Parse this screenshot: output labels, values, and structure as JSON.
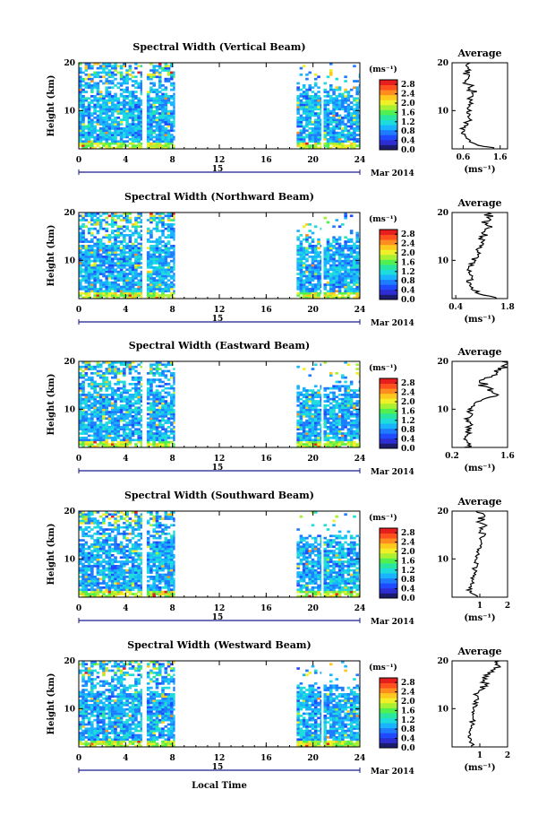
{
  "date_label": "Mar 2014",
  "day_label": "15",
  "xlabel": "Local Time",
  "colorbar": {
    "unit": "(ms⁻¹)",
    "ticks": [
      "0.0",
      "0.4",
      "0.8",
      "1.2",
      "1.6",
      "2.0",
      "2.4",
      "2.8"
    ],
    "min": 0.0,
    "max": 3.0,
    "colors": [
      "#1c1c6e",
      "#2d2dd2",
      "#1e4bff",
      "#1e7dff",
      "#18b4ff",
      "#1edcdc",
      "#28e6a0",
      "#50f050",
      "#aaf032",
      "#f0f028",
      "#ffc81e",
      "#ff8c1e",
      "#ff501e",
      "#e61e1e"
    ]
  },
  "chart_data": [
    {
      "type": "heatmap",
      "title": "Spectral Width (Vertical Beam)",
      "xlabel": "Local Time",
      "ylabel": "Height (km)",
      "xlim": [
        0,
        24
      ],
      "ylim": [
        2,
        20
      ],
      "xticks": [
        0,
        4,
        8,
        12,
        16,
        20,
        24
      ],
      "yticks": [
        10,
        20
      ],
      "data_segments": [
        [
          0,
          5.4
        ],
        [
          5.8,
          8.2
        ],
        [
          18.6,
          20.7
        ],
        [
          20.9,
          24
        ]
      ],
      "zunit": "ms⁻¹",
      "zlim": [
        0,
        3.0
      ],
      "average_profile": {
        "title": "Average",
        "xlabel": "(ms⁻¹)",
        "xlim": [
          0.3,
          1.8
        ],
        "xticks": [
          0.6,
          1.6
        ],
        "height": [
          2,
          3,
          4,
          5,
          6,
          7,
          8,
          9,
          10,
          11,
          12,
          13,
          14,
          15,
          16,
          17,
          18,
          19,
          20
        ],
        "value": [
          1.5,
          0.9,
          0.7,
          0.6,
          0.6,
          0.65,
          0.75,
          0.7,
          0.75,
          0.8,
          0.75,
          0.85,
          0.9,
          0.75,
          0.7,
          0.8,
          0.65,
          0.7,
          0.65
        ]
      }
    },
    {
      "type": "heatmap",
      "title": "Spectral Width (Northward Beam)",
      "xlabel": "Local Time",
      "ylabel": "Height (km)",
      "xlim": [
        0,
        24
      ],
      "ylim": [
        2,
        20
      ],
      "xticks": [
        0,
        4,
        8,
        12,
        16,
        20,
        24
      ],
      "yticks": [
        10,
        20
      ],
      "data_segments": [
        [
          0,
          5.4
        ],
        [
          5.8,
          8.2
        ],
        [
          18.6,
          20.7
        ],
        [
          20.9,
          24
        ]
      ],
      "zunit": "ms⁻¹",
      "zlim": [
        0,
        3.0
      ],
      "average_profile": {
        "title": "Average",
        "xlabel": "(ms⁻¹)",
        "xlim": [
          0.3,
          1.8
        ],
        "xticks": [
          0.4,
          1.8
        ],
        "height": [
          2,
          3,
          4,
          5,
          6,
          7,
          8,
          9,
          10,
          11,
          12,
          13,
          14,
          15,
          16,
          17,
          18,
          19,
          20
        ],
        "value": [
          1.6,
          1.1,
          0.8,
          0.75,
          0.8,
          0.85,
          0.8,
          0.85,
          0.9,
          0.95,
          1.0,
          1.1,
          1.2,
          1.1,
          1.2,
          1.3,
          1.1,
          1.3,
          1.2
        ]
      }
    },
    {
      "type": "heatmap",
      "title": "Spectral Width (Eastward Beam)",
      "xlabel": "Local Time",
      "ylabel": "Height (km)",
      "xlim": [
        0,
        24
      ],
      "ylim": [
        2,
        20
      ],
      "xticks": [
        0,
        4,
        8,
        12,
        16,
        20,
        24
      ],
      "yticks": [
        10,
        20
      ],
      "data_segments": [
        [
          0,
          5.4
        ],
        [
          5.8,
          8.2
        ],
        [
          18.6,
          20.7
        ],
        [
          20.9,
          24
        ]
      ],
      "zunit": "ms⁻¹",
      "zlim": [
        0,
        3.0
      ],
      "average_profile": {
        "title": "Average",
        "xlabel": "(ms⁻¹)",
        "xlim": [
          0.2,
          1.6
        ],
        "xticks": [
          0.2,
          1.6
        ],
        "height": [
          2,
          3,
          4,
          5,
          6,
          7,
          8,
          9,
          10,
          11,
          12,
          13,
          14,
          15,
          16,
          17,
          18,
          19,
          20
        ],
        "value": [
          0.6,
          0.6,
          0.55,
          0.6,
          0.6,
          0.7,
          0.6,
          0.75,
          0.6,
          0.8,
          1.0,
          1.3,
          1.1,
          1.0,
          0.9,
          1.3,
          1.4,
          1.6,
          1.5
        ]
      }
    },
    {
      "type": "heatmap",
      "title": "Spectral Width (Southward Beam)",
      "xlabel": "Local Time",
      "ylabel": "Height (km)",
      "xlim": [
        0,
        24
      ],
      "ylim": [
        2,
        20
      ],
      "xticks": [
        0,
        4,
        8,
        12,
        16,
        20,
        24
      ],
      "yticks": [
        10,
        20
      ],
      "data_segments": [
        [
          0,
          5.4
        ],
        [
          5.8,
          8.2
        ],
        [
          18.6,
          20.7
        ],
        [
          20.9,
          24
        ]
      ],
      "zunit": "ms⁻¹",
      "zlim": [
        0,
        3.0
      ],
      "average_profile": {
        "title": "Average",
        "xlabel": "(ms⁻¹)",
        "xlim": [
          0,
          2
        ],
        "xticks": [
          1,
          2
        ],
        "height": [
          2,
          3,
          4,
          5,
          6,
          7,
          8,
          9,
          10,
          11,
          12,
          13,
          14,
          15,
          16,
          17,
          18,
          19,
          20
        ],
        "value": [
          1.0,
          0.6,
          0.65,
          0.7,
          0.75,
          0.8,
          0.8,
          0.85,
          0.9,
          0.95,
          1.0,
          1.05,
          1.0,
          1.1,
          1.0,
          1.2,
          1.0,
          1.1,
          1.0
        ]
      }
    },
    {
      "type": "heatmap",
      "title": "Spectral Width (Westward Beam)",
      "xlabel": "Local Time",
      "ylabel": "Height (km)",
      "xlim": [
        0,
        24
      ],
      "ylim": [
        2,
        20
      ],
      "xticks": [
        0,
        4,
        8,
        12,
        16,
        20,
        24
      ],
      "yticks": [
        10,
        20
      ],
      "data_segments": [
        [
          0,
          5.4
        ],
        [
          5.8,
          8.2
        ],
        [
          18.6,
          20.7
        ],
        [
          20.9,
          24
        ]
      ],
      "zunit": "ms⁻¹",
      "zlim": [
        0,
        3.0
      ],
      "average_profile": {
        "title": "Average",
        "xlabel": "(ms⁻¹)",
        "xlim": [
          0,
          2
        ],
        "xticks": [
          1,
          2
        ],
        "height": [
          2,
          3,
          4,
          5,
          6,
          7,
          8,
          9,
          10,
          11,
          12,
          13,
          14,
          15,
          16,
          17,
          18,
          19,
          20
        ],
        "value": [
          0.8,
          0.7,
          0.65,
          0.7,
          0.75,
          0.7,
          0.8,
          0.75,
          0.8,
          0.85,
          0.9,
          0.85,
          1.0,
          1.2,
          1.1,
          1.3,
          1.5,
          1.7,
          1.6
        ]
      }
    }
  ]
}
